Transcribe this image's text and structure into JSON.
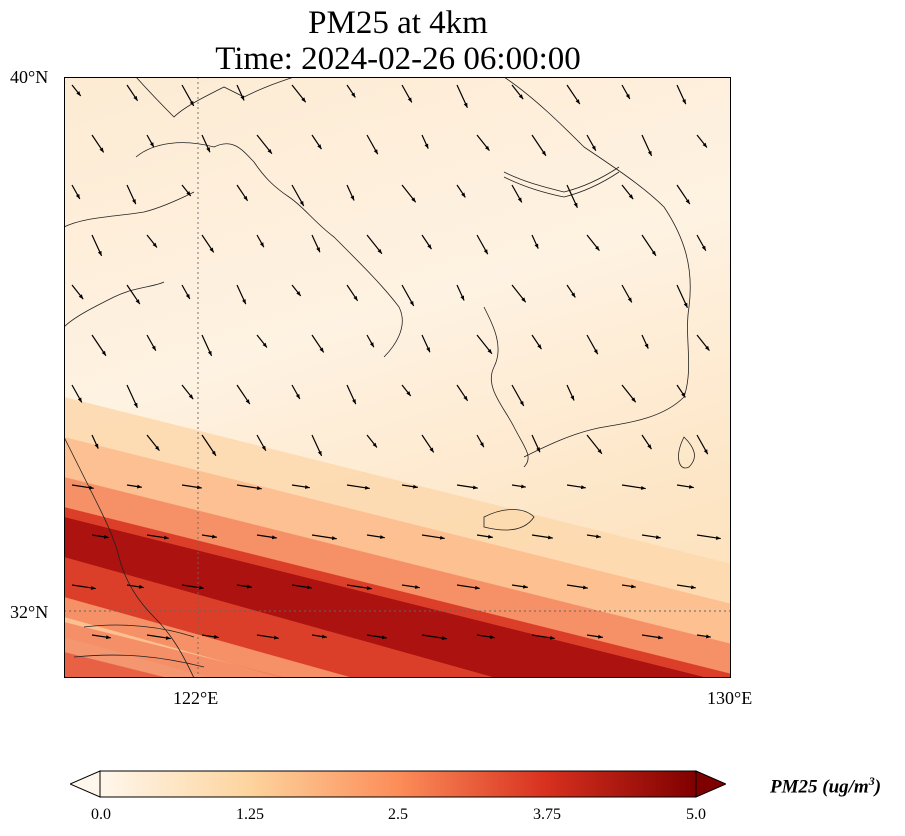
{
  "title": {
    "line1": "PM25 at 4km",
    "line2": "Time: 2024-02-26 06:00:00"
  },
  "axes": {
    "lat_labels": [
      "40°N",
      "32°N"
    ],
    "lon_labels": [
      "122°E",
      "130°E"
    ],
    "lon_range": [
      120,
      130
    ],
    "lat_range": [
      31,
      40
    ],
    "gridlines": {
      "lon": 122,
      "lat": 32
    }
  },
  "colorbar": {
    "label": "PM25 (ug/m³)",
    "ticks": [
      "0.0",
      "1.25",
      "2.5",
      "3.75",
      "5.0"
    ],
    "min": 0,
    "max": 5,
    "colors": [
      "#fff7ec",
      "#fdd49e",
      "#fc8d59",
      "#d7301f",
      "#7f0000"
    ],
    "extend": "both"
  },
  "chart_data": {
    "type": "heatmap",
    "title": "PM25 at 4km / Time: 2024-02-26 06:00:00",
    "variable": "PM25",
    "units": "ug/m3",
    "overlay": "wind vectors",
    "pattern": "high-concentration band (up to ~5) oriented WNW-ESE across the southern part of the domain near 32-33°N; low values (0-1) over Korea, Yellow Sea and northern China"
  }
}
